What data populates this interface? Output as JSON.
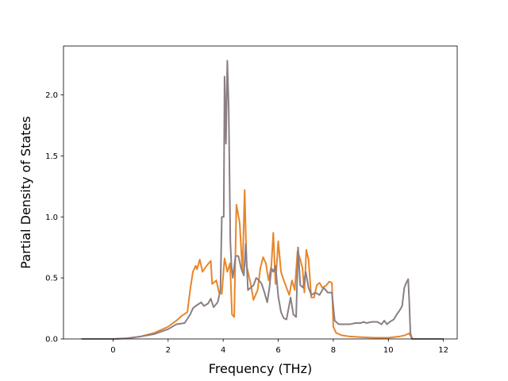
{
  "chart_data": {
    "type": "line",
    "title": "",
    "xlabel": "Frequency (THz)",
    "ylabel": "Partial Density of States",
    "xlim": [
      -1.8,
      12.5
    ],
    "ylim": [
      0.0,
      2.4
    ],
    "xticks": [
      0,
      2,
      4,
      6,
      8,
      10,
      12
    ],
    "yticks": [
      0.0,
      0.5,
      1.0,
      1.5,
      2.0
    ],
    "xtick_labels": [
      "0",
      "2",
      "4",
      "6",
      "8",
      "10",
      "12"
    ],
    "ytick_labels": [
      "0.0",
      "0.5",
      "1.0",
      "1.5",
      "2.0"
    ],
    "grid": false,
    "legend": "none",
    "series": [
      {
        "color": "#e8862a",
        "points": [
          [
            -1.15,
            0.0
          ],
          [
            0.0,
            0.0
          ],
          [
            0.5,
            0.005
          ],
          [
            1.0,
            0.02
          ],
          [
            1.5,
            0.05
          ],
          [
            2.0,
            0.1
          ],
          [
            2.3,
            0.15
          ],
          [
            2.5,
            0.19
          ],
          [
            2.7,
            0.22
          ],
          [
            2.8,
            0.4
          ],
          [
            2.9,
            0.55
          ],
          [
            3.0,
            0.6
          ],
          [
            3.05,
            0.57
          ],
          [
            3.15,
            0.65
          ],
          [
            3.25,
            0.55
          ],
          [
            3.4,
            0.6
          ],
          [
            3.55,
            0.64
          ],
          [
            3.6,
            0.45
          ],
          [
            3.75,
            0.48
          ],
          [
            3.85,
            0.38
          ],
          [
            3.95,
            0.37
          ],
          [
            4.05,
            0.66
          ],
          [
            4.15,
            0.55
          ],
          [
            4.25,
            0.62
          ],
          [
            4.32,
            0.2
          ],
          [
            4.4,
            0.18
          ],
          [
            4.48,
            1.1
          ],
          [
            4.6,
            0.95
          ],
          [
            4.7,
            0.55
          ],
          [
            4.78,
            1.22
          ],
          [
            4.85,
            0.6
          ],
          [
            5.0,
            0.45
          ],
          [
            5.1,
            0.32
          ],
          [
            5.25,
            0.4
          ],
          [
            5.35,
            0.58
          ],
          [
            5.45,
            0.67
          ],
          [
            5.55,
            0.62
          ],
          [
            5.65,
            0.48
          ],
          [
            5.75,
            0.6
          ],
          [
            5.82,
            0.87
          ],
          [
            5.9,
            0.45
          ],
          [
            6.0,
            0.8
          ],
          [
            6.1,
            0.55
          ],
          [
            6.2,
            0.48
          ],
          [
            6.3,
            0.42
          ],
          [
            6.4,
            0.36
          ],
          [
            6.5,
            0.48
          ],
          [
            6.6,
            0.4
          ],
          [
            6.7,
            0.72
          ],
          [
            6.8,
            0.65
          ],
          [
            6.88,
            0.58
          ],
          [
            6.95,
            0.38
          ],
          [
            7.02,
            0.73
          ],
          [
            7.1,
            0.65
          ],
          [
            7.2,
            0.34
          ],
          [
            7.3,
            0.34
          ],
          [
            7.4,
            0.44
          ],
          [
            7.5,
            0.46
          ],
          [
            7.6,
            0.42
          ],
          [
            7.75,
            0.44
          ],
          [
            7.85,
            0.47
          ],
          [
            7.95,
            0.46
          ],
          [
            8.0,
            0.1
          ],
          [
            8.1,
            0.05
          ],
          [
            8.3,
            0.03
          ],
          [
            8.6,
            0.02
          ],
          [
            9.0,
            0.015
          ],
          [
            9.5,
            0.01
          ],
          [
            10.0,
            0.01
          ],
          [
            10.4,
            0.02
          ],
          [
            10.6,
            0.03
          ],
          [
            10.75,
            0.045
          ],
          [
            10.82,
            0.02
          ],
          [
            10.9,
            0.0
          ],
          [
            12.0,
            0.0
          ]
        ]
      },
      {
        "color": "#8a7f85",
        "points": [
          [
            -1.15,
            0.0
          ],
          [
            0.0,
            0.0
          ],
          [
            0.5,
            0.005
          ],
          [
            1.0,
            0.02
          ],
          [
            1.5,
            0.04
          ],
          [
            2.0,
            0.08
          ],
          [
            2.3,
            0.12
          ],
          [
            2.6,
            0.13
          ],
          [
            2.8,
            0.2
          ],
          [
            2.9,
            0.25
          ],
          [
            3.0,
            0.27
          ],
          [
            3.2,
            0.3
          ],
          [
            3.3,
            0.27
          ],
          [
            3.45,
            0.29
          ],
          [
            3.55,
            0.33
          ],
          [
            3.65,
            0.26
          ],
          [
            3.8,
            0.3
          ],
          [
            3.9,
            0.4
          ],
          [
            3.95,
            1.0
          ],
          [
            4.02,
            1.0
          ],
          [
            4.05,
            2.15
          ],
          [
            4.1,
            1.6
          ],
          [
            4.15,
            2.28
          ],
          [
            4.2,
            1.9
          ],
          [
            4.26,
            0.8
          ],
          [
            4.3,
            0.6
          ],
          [
            4.35,
            0.5
          ],
          [
            4.45,
            0.68
          ],
          [
            4.55,
            0.68
          ],
          [
            4.65,
            0.58
          ],
          [
            4.75,
            0.52
          ],
          [
            4.82,
            0.78
          ],
          [
            4.9,
            0.4
          ],
          [
            5.0,
            0.42
          ],
          [
            5.1,
            0.44
          ],
          [
            5.2,
            0.5
          ],
          [
            5.3,
            0.48
          ],
          [
            5.4,
            0.45
          ],
          [
            5.5,
            0.38
          ],
          [
            5.6,
            0.3
          ],
          [
            5.68,
            0.42
          ],
          [
            5.75,
            0.58
          ],
          [
            5.82,
            0.55
          ],
          [
            5.9,
            0.6
          ],
          [
            6.0,
            0.35
          ],
          [
            6.1,
            0.22
          ],
          [
            6.2,
            0.17
          ],
          [
            6.3,
            0.16
          ],
          [
            6.45,
            0.34
          ],
          [
            6.55,
            0.2
          ],
          [
            6.65,
            0.18
          ],
          [
            6.72,
            0.75
          ],
          [
            6.8,
            0.44
          ],
          [
            6.9,
            0.42
          ],
          [
            7.0,
            0.55
          ],
          [
            7.1,
            0.42
          ],
          [
            7.2,
            0.36
          ],
          [
            7.35,
            0.38
          ],
          [
            7.5,
            0.36
          ],
          [
            7.65,
            0.42
          ],
          [
            7.8,
            0.38
          ],
          [
            7.95,
            0.38
          ],
          [
            8.05,
            0.15
          ],
          [
            8.2,
            0.12
          ],
          [
            8.4,
            0.12
          ],
          [
            8.6,
            0.12
          ],
          [
            8.8,
            0.13
          ],
          [
            9.0,
            0.13
          ],
          [
            9.1,
            0.14
          ],
          [
            9.2,
            0.13
          ],
          [
            9.4,
            0.14
          ],
          [
            9.6,
            0.14
          ],
          [
            9.75,
            0.12
          ],
          [
            9.85,
            0.15
          ],
          [
            9.95,
            0.12
          ],
          [
            10.05,
            0.14
          ],
          [
            10.2,
            0.16
          ],
          [
            10.3,
            0.2
          ],
          [
            10.4,
            0.23
          ],
          [
            10.5,
            0.27
          ],
          [
            10.58,
            0.42
          ],
          [
            10.65,
            0.46
          ],
          [
            10.72,
            0.49
          ],
          [
            10.76,
            0.3
          ],
          [
            10.8,
            0.05
          ],
          [
            10.85,
            0.0
          ],
          [
            12.0,
            0.0
          ]
        ]
      }
    ]
  }
}
